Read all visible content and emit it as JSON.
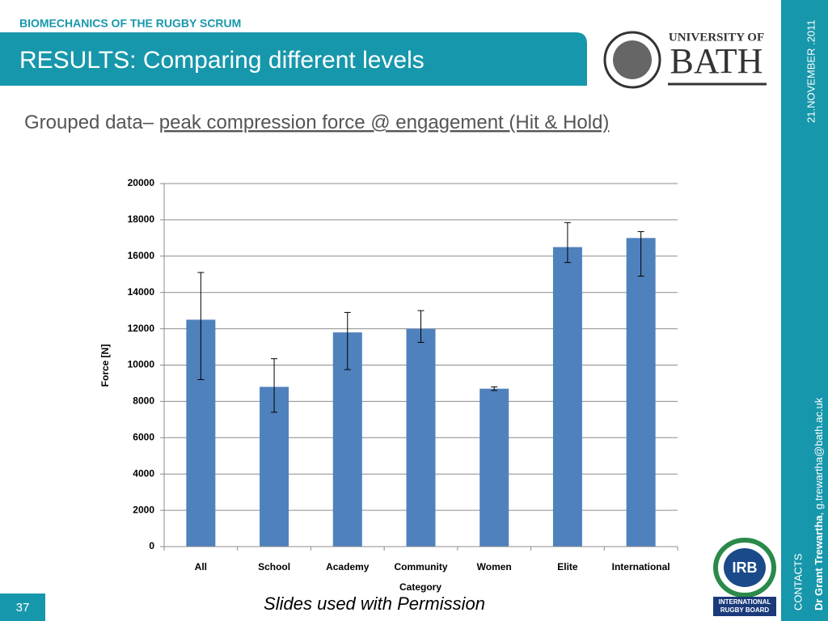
{
  "header": {
    "section": "BIOMECHANICS OF THE RUGBY SCRUM",
    "title": "RESULTS: Comparing different levels",
    "logo_top": "UNIVERSITY OF",
    "logo_main": "BATH"
  },
  "subtitle": {
    "lead": "Grouped data– ",
    "topic": "peak compression force @ engagement (Hit & Hold)"
  },
  "sidebar": {
    "date": "21.NOVEMBER .2011",
    "contact_name": "Dr Grant Trewartha",
    "contact_email": ", g.trewartha@bath.ac.uk",
    "contacts_label": "CONTACTS",
    "irb_logo": "IRB",
    "irb_line1": "INTERNATIONAL",
    "irb_line2": "RUGBY BOARD"
  },
  "footer": {
    "page": "37",
    "note": "Slides used with Permission"
  },
  "chart_data": {
    "type": "bar",
    "x_label": "Category",
    "y_label": "Force [N]",
    "categories": [
      "All",
      "School",
      "Academy",
      "Community",
      "Women",
      "Elite",
      "International"
    ],
    "values": [
      12500,
      8800,
      11800,
      12000,
      8700,
      16500,
      17000
    ],
    "error_plus": [
      2600,
      1550,
      1100,
      1000,
      100,
      1350,
      350
    ],
    "error_minus": [
      3300,
      1400,
      2050,
      750,
      100,
      850,
      2100
    ],
    "color": "#4f81bd",
    "ylim": [
      0,
      20000
    ],
    "yticks": [
      0,
      2000,
      4000,
      6000,
      8000,
      10000,
      12000,
      14000,
      16000,
      18000,
      20000
    ],
    "grid": true
  }
}
